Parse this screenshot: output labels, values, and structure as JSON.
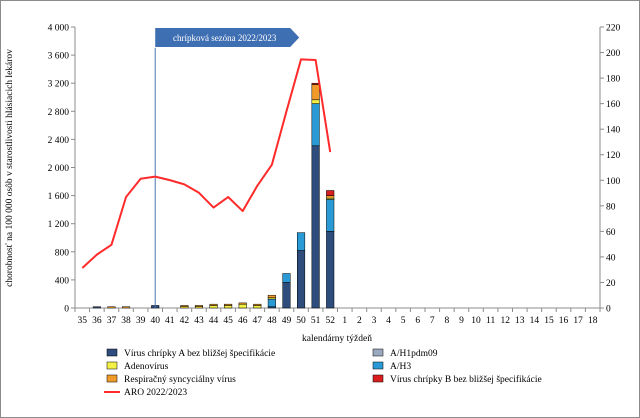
{
  "chart_data": {
    "type": "bar+line",
    "title": "",
    "xlabel": "kalendárny týždeň",
    "ylabel": "chorobnosť na 100 000 osôb v starostlivosti hlásiacich lekárov",
    "y2label": "",
    "ylim": [
      0,
      4000
    ],
    "yticks": [
      0,
      400,
      800,
      1200,
      1600,
      2000,
      2400,
      2800,
      3200,
      3600,
      4000
    ],
    "ytick_labels": [
      "0",
      "400",
      "800",
      "1 200",
      "1 600",
      "2 000",
      "2 400",
      "2 800",
      "3 200",
      "3 600",
      "4 000"
    ],
    "y2lim": [
      0,
      220
    ],
    "y2ticks": [
      0,
      20,
      40,
      60,
      80,
      100,
      120,
      140,
      160,
      180,
      200,
      220
    ],
    "grid": false,
    "legend_position": "bottom",
    "annotation": {
      "text": "chrípková sezóna 2022/2023",
      "at_week": "40"
    },
    "categories": [
      "35",
      "36",
      "37",
      "38",
      "39",
      "40",
      "41",
      "42",
      "43",
      "44",
      "45",
      "46",
      "47",
      "48",
      "49",
      "50",
      "51",
      "52",
      "1",
      "2",
      "3",
      "4",
      "5",
      "6",
      "7",
      "8",
      "9",
      "10",
      "11",
      "12",
      "13",
      "14",
      "15",
      "16",
      "17",
      "18"
    ],
    "bar_axis": "right",
    "line_axis": "left",
    "series": [
      {
        "name": "Vírus chrípky A bez bližšej špecifikácie",
        "kind": "bar",
        "color": "#2e4c7c",
        "values": [
          0,
          1,
          0,
          0,
          0,
          2,
          0,
          0,
          0,
          0,
          0,
          0,
          0,
          1,
          20,
          45,
          127,
          60,
          0,
          0,
          0,
          0,
          0,
          0,
          0,
          0,
          0,
          0,
          0,
          0,
          0,
          0,
          0,
          0,
          0,
          0
        ]
      },
      {
        "name": "A/H1pdm09",
        "kind": "bar",
        "color": "#9aa9c0",
        "values": [
          0,
          0,
          0,
          0,
          0,
          0,
          0,
          0,
          0,
          0,
          0,
          0,
          0,
          0,
          0,
          0,
          0,
          0,
          0,
          0,
          0,
          0,
          0,
          0,
          0,
          0,
          0,
          0,
          0,
          0,
          0,
          0,
          0,
          0,
          0,
          0
        ]
      },
      {
        "name": "A/H3",
        "kind": "bar",
        "color": "#2a9ad6",
        "values": [
          0,
          0,
          0,
          0,
          0,
          0,
          0,
          0,
          0,
          0,
          0,
          0,
          0,
          6,
          7,
          14,
          33,
          25,
          0,
          0,
          0,
          0,
          0,
          0,
          0,
          0,
          0,
          0,
          0,
          0,
          0,
          0,
          0,
          0,
          0,
          0
        ]
      },
      {
        "name": "Adenovírus",
        "kind": "bar",
        "color": "#f2ef45",
        "values": [
          0,
          0,
          0,
          0,
          0,
          0,
          0,
          1,
          1,
          2,
          2,
          3,
          2,
          1,
          0,
          0,
          3,
          1,
          0,
          0,
          0,
          0,
          0,
          0,
          0,
          0,
          0,
          0,
          0,
          0,
          0,
          0,
          0,
          0,
          0,
          0
        ]
      },
      {
        "name": "Respiračný syncyciálny vírus",
        "kind": "bar",
        "color": "#f09a2a",
        "values": [
          0,
          0,
          1,
          1,
          0,
          0,
          0,
          1,
          1,
          1,
          1,
          1,
          1,
          2,
          0,
          0,
          12,
          2,
          0,
          0,
          0,
          0,
          0,
          0,
          0,
          0,
          0,
          0,
          0,
          0,
          0,
          0,
          0,
          0,
          0,
          0
        ]
      },
      {
        "name": "Vírus chrípky B bez bližšej špecifikácie",
        "kind": "bar",
        "color": "#d81e1e",
        "values": [
          0,
          0,
          0,
          0,
          0,
          0,
          0,
          0,
          0,
          0,
          0,
          0,
          0,
          0,
          0,
          0,
          1,
          4,
          0,
          0,
          0,
          0,
          0,
          0,
          0,
          0,
          0,
          0,
          0,
          0,
          0,
          0,
          0,
          0,
          0,
          0
        ]
      },
      {
        "name": "ARO 2022/2023",
        "kind": "line",
        "color": "#ff2b2b",
        "values": [
          570,
          760,
          900,
          1580,
          1840,
          1870,
          1820,
          1760,
          1640,
          1430,
          1580,
          1380,
          1740,
          2040,
          2800,
          3540,
          3530,
          2220,
          null,
          null,
          null,
          null,
          null,
          null,
          null,
          null,
          null,
          null,
          null,
          null,
          null,
          null,
          null,
          null,
          null,
          null
        ]
      }
    ]
  }
}
